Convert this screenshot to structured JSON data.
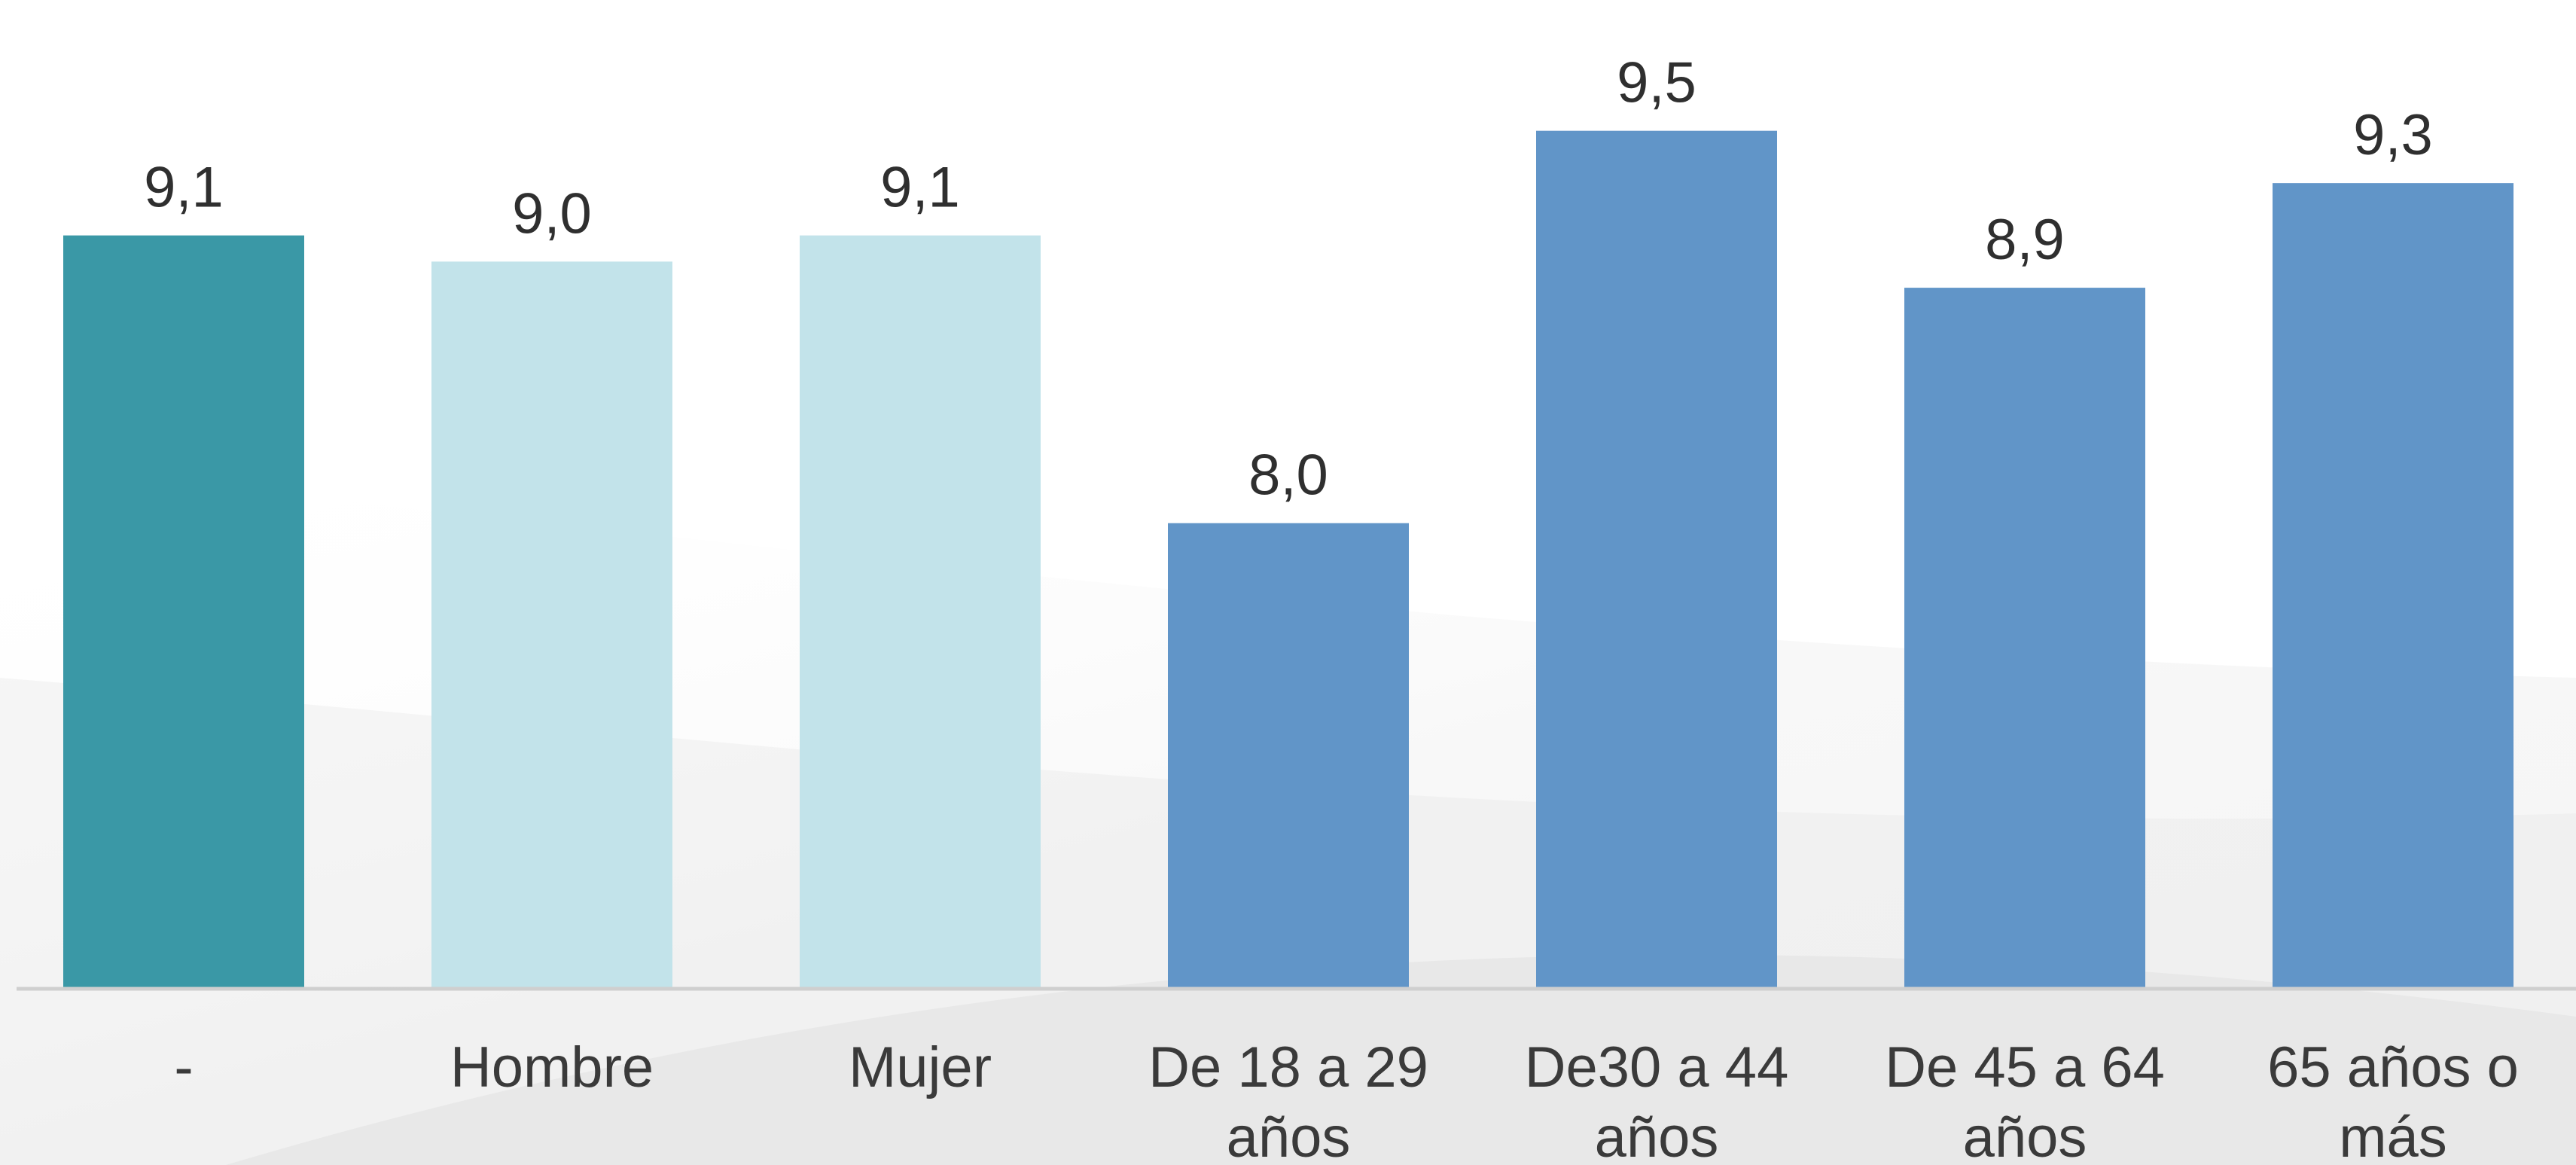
{
  "chart_data": {
    "type": "bar",
    "title": "",
    "xlabel": "",
    "ylabel": "",
    "categories": [
      "-",
      "Hombre",
      "Mujer",
      "De 18 a 29 años",
      "De30 a 44 años",
      "De 45 a 64 años",
      "65 años o más"
    ],
    "category_lines": [
      [
        "-"
      ],
      [
        "Hombre"
      ],
      [
        "Mujer"
      ],
      [
        "De 18 a 29",
        "años"
      ],
      [
        "De30 a 44",
        "años"
      ],
      [
        "De 45 a 64",
        "años"
      ],
      [
        "65 años o",
        "más"
      ]
    ],
    "values": [
      9.1,
      9.0,
      9.1,
      8.0,
      9.5,
      8.9,
      9.3
    ],
    "value_labels": [
      "9,1",
      "9,0",
      "9,1",
      "8,0",
      "9,5",
      "8,9",
      "9,3"
    ],
    "bar_colors": [
      "#3a98a6",
      "#c2e3ea",
      "#c2e3ea",
      "#6195c8",
      "#6195c8",
      "#6195c8",
      "#6195c8"
    ],
    "axis_color": "#cfcfcf",
    "ylim": [
      6.22,
      10.0
    ],
    "grid": false,
    "legend": "none"
  }
}
